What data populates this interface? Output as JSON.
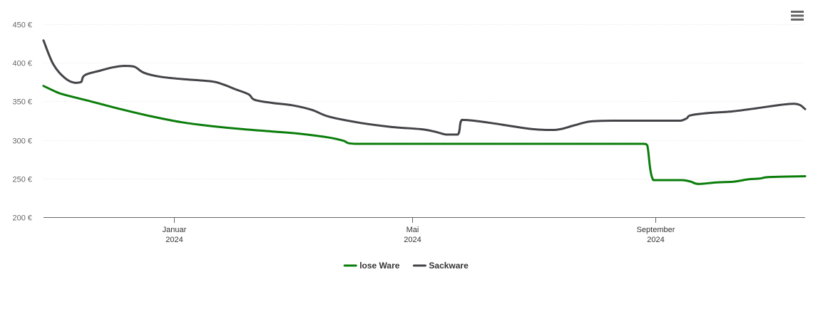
{
  "chart_data": {
    "type": "line",
    "title": "",
    "xlabel": "",
    "ylabel": "",
    "ylim": [
      200,
      450
    ],
    "y_ticks": [
      {
        "value": 450,
        "label": "450 €"
      },
      {
        "value": 400,
        "label": "400 €"
      },
      {
        "value": 350,
        "label": "350 €"
      },
      {
        "value": 300,
        "label": "300 €"
      },
      {
        "value": 250,
        "label": "250 €"
      },
      {
        "value": 200,
        "label": "200 €"
      }
    ],
    "xlim": [
      "2023-10-27",
      "2024-11-16"
    ],
    "x_ticks": [
      {
        "date": "2024-01-01",
        "month": "Januar",
        "year": "2024"
      },
      {
        "date": "2024-05-01",
        "month": "Mai",
        "year": "2024"
      },
      {
        "date": "2024-09-01",
        "month": "September",
        "year": "2024"
      }
    ],
    "grid": true,
    "legend_position": "bottom-center",
    "series": [
      {
        "name": "lose Ware",
        "color": "#0a7d0a",
        "points": [
          [
            "2023-10-27",
            370
          ],
          [
            "2023-11-01",
            364
          ],
          [
            "2023-11-06",
            359
          ],
          [
            "2023-11-20",
            350
          ],
          [
            "2023-12-05",
            340
          ],
          [
            "2023-12-20",
            331
          ],
          [
            "2024-01-05",
            323
          ],
          [
            "2024-01-20",
            318
          ],
          [
            "2024-02-05",
            314
          ],
          [
            "2024-02-20",
            311
          ],
          [
            "2024-03-05",
            308
          ],
          [
            "2024-03-20",
            303
          ],
          [
            "2024-03-27",
            299
          ],
          [
            "2024-04-02",
            295
          ],
          [
            "2024-05-01",
            295
          ],
          [
            "2024-06-01",
            295
          ],
          [
            "2024-07-01",
            295
          ],
          [
            "2024-08-01",
            295
          ],
          [
            "2024-08-26",
            295
          ],
          [
            "2024-08-28",
            293
          ],
          [
            "2024-08-31",
            248
          ],
          [
            "2024-09-08",
            248
          ],
          [
            "2024-09-15",
            248
          ],
          [
            "2024-09-19",
            246
          ],
          [
            "2024-09-23",
            243
          ],
          [
            "2024-10-02",
            245
          ],
          [
            "2024-10-11",
            246
          ],
          [
            "2024-10-18",
            249
          ],
          [
            "2024-10-24",
            250
          ],
          [
            "2024-10-29",
            252
          ],
          [
            "2024-11-16",
            253
          ]
        ]
      },
      {
        "name": "Sackware",
        "color": "#434348",
        "points": [
          [
            "2023-10-27",
            429
          ],
          [
            "2023-11-01",
            398
          ],
          [
            "2023-11-07",
            380
          ],
          [
            "2023-11-12",
            374
          ],
          [
            "2023-11-15",
            375
          ],
          [
            "2023-11-17",
            384
          ],
          [
            "2023-11-25",
            390
          ],
          [
            "2023-12-01",
            394
          ],
          [
            "2023-12-07",
            396
          ],
          [
            "2023-12-12",
            395
          ],
          [
            "2023-12-17",
            387
          ],
          [
            "2023-12-25",
            382
          ],
          [
            "2024-01-05",
            379
          ],
          [
            "2024-01-20",
            376
          ],
          [
            "2024-01-26",
            372
          ],
          [
            "2024-02-01",
            366
          ],
          [
            "2024-02-08",
            359
          ],
          [
            "2024-02-11",
            352
          ],
          [
            "2024-02-20",
            348
          ],
          [
            "2024-03-01",
            345
          ],
          [
            "2024-03-11",
            339
          ],
          [
            "2024-03-20",
            330
          ],
          [
            "2024-04-05",
            322
          ],
          [
            "2024-04-20",
            317
          ],
          [
            "2024-05-05",
            314
          ],
          [
            "2024-05-12",
            311
          ],
          [
            "2024-05-18",
            307
          ],
          [
            "2024-05-24",
            307
          ],
          [
            "2024-05-26",
            326
          ],
          [
            "2024-06-01",
            325
          ],
          [
            "2024-06-10",
            322
          ],
          [
            "2024-06-20",
            318
          ],
          [
            "2024-07-01",
            314
          ],
          [
            "2024-07-10",
            313
          ],
          [
            "2024-07-15",
            314
          ],
          [
            "2024-07-22",
            319
          ],
          [
            "2024-07-30",
            324
          ],
          [
            "2024-08-10",
            325
          ],
          [
            "2024-09-01",
            325
          ],
          [
            "2024-09-10",
            325
          ],
          [
            "2024-09-14",
            325
          ],
          [
            "2024-09-17",
            328
          ],
          [
            "2024-09-19",
            332
          ],
          [
            "2024-09-28",
            335
          ],
          [
            "2024-10-10",
            337
          ],
          [
            "2024-10-22",
            341
          ],
          [
            "2024-11-10",
            347
          ],
          [
            "2024-11-16",
            340
          ]
        ]
      }
    ]
  },
  "toolbar": {
    "menu_icon": "hamburger-menu-icon"
  }
}
